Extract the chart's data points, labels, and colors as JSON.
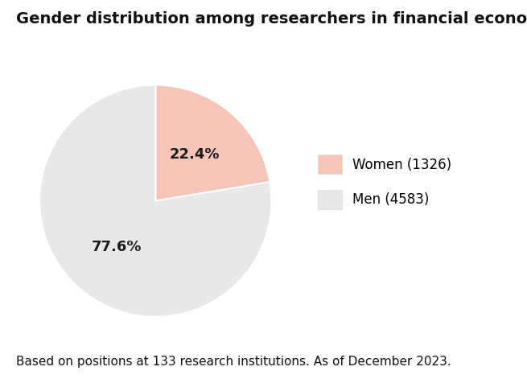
{
  "title": "Gender distribution among researchers in financial economics",
  "slices": [
    22.4,
    77.6
  ],
  "labels": [
    "Women (1326)",
    "Men (4583)"
  ],
  "pct_labels": [
    "22.4%",
    "77.6%"
  ],
  "colors": [
    "#f5c5b8",
    "#e8e8e8"
  ],
  "footnote": "Based on positions at 133 research institutions. As of December 2023.",
  "background_color": "#ffffff",
  "title_fontsize": 14,
  "label_fontsize": 12,
  "pct_fontsize": 13,
  "footnote_fontsize": 11,
  "startangle": 90
}
